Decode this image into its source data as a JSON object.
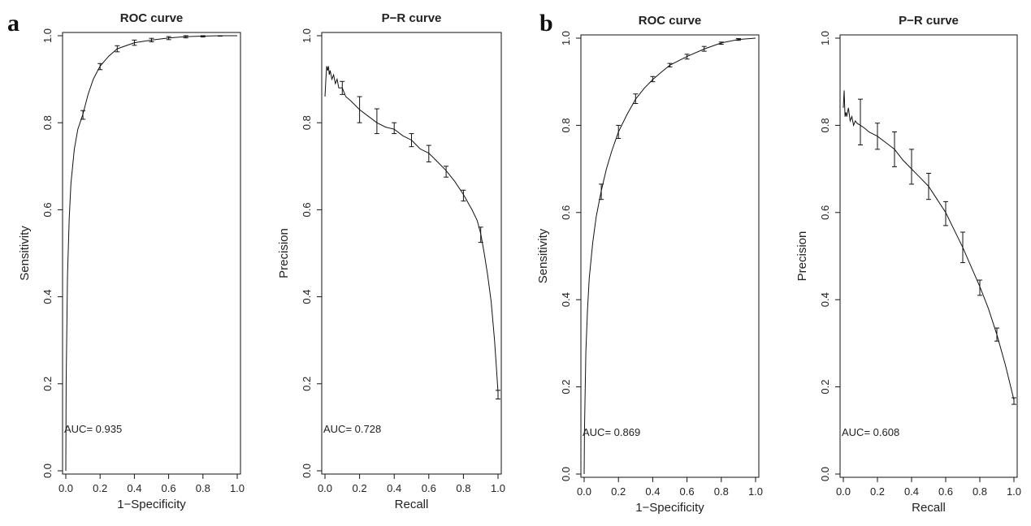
{
  "figure": {
    "panels": [
      {
        "letter": "a"
      },
      {
        "letter": "b"
      }
    ]
  },
  "chart_data": [
    {
      "panel": "a",
      "type": "line",
      "title": "ROC curve",
      "xlabel": "1−Specificity",
      "ylabel": "Sensitivity",
      "xlim": [
        0,
        1
      ],
      "ylim": [
        0,
        1
      ],
      "xticks": [
        "0.0",
        "0.2",
        "0.4",
        "0.6",
        "0.8",
        "1.0"
      ],
      "yticks": [
        "0.0",
        "0.2",
        "0.4",
        "0.6",
        "0.8",
        "1.0"
      ],
      "annotation": "AUC= 0.935",
      "series": [
        {
          "x": [
            0,
            0.002,
            0.01,
            0.02,
            0.03,
            0.05,
            0.07,
            0.1,
            0.13,
            0.16,
            0.2,
            0.25,
            0.3,
            0.4,
            0.5,
            0.6,
            0.7,
            0.8,
            0.9,
            1.0
          ],
          "y": [
            0,
            0.2,
            0.45,
            0.58,
            0.66,
            0.74,
            0.785,
            0.82,
            0.865,
            0.9,
            0.93,
            0.953,
            0.97,
            0.984,
            0.99,
            0.995,
            0.998,
            0.999,
            1.0,
            1.0
          ]
        }
      ],
      "error_bars": [
        {
          "x": 0.1,
          "low": 0.808,
          "high": 0.828
        },
        {
          "x": 0.2,
          "low": 0.922,
          "high": 0.936
        },
        {
          "x": 0.3,
          "low": 0.963,
          "high": 0.977
        },
        {
          "x": 0.4,
          "low": 0.978,
          "high": 0.99
        },
        {
          "x": 0.5,
          "low": 0.986,
          "high": 0.994
        },
        {
          "x": 0.6,
          "low": 0.991,
          "high": 0.998
        },
        {
          "x": 0.7,
          "low": 0.995,
          "high": 1.0
        },
        {
          "x": 0.8,
          "low": 0.997,
          "high": 1.0
        },
        {
          "x": 0.9,
          "low": 0.999,
          "high": 1.0
        }
      ]
    },
    {
      "panel": "a",
      "type": "line",
      "title": "P−R curve",
      "xlabel": "Recall",
      "ylabel": "Precision",
      "xlim": [
        0,
        1
      ],
      "ylim": [
        0,
        1
      ],
      "xticks": [
        "0.0",
        "0.2",
        "0.4",
        "0.6",
        "0.8",
        "1.0"
      ],
      "yticks": [
        "0.0",
        "0.2",
        "0.4",
        "0.6",
        "0.8",
        "1.0"
      ],
      "annotation": "AUC= 0.728",
      "series": [
        {
          "x": [
            0,
            0.005,
            0.01,
            0.015,
            0.02,
            0.025,
            0.03,
            0.04,
            0.05,
            0.06,
            0.07,
            0.08,
            0.1,
            0.12,
            0.15,
            0.2,
            0.25,
            0.3,
            0.35,
            0.4,
            0.45,
            0.5,
            0.55,
            0.6,
            0.65,
            0.7,
            0.75,
            0.8,
            0.85,
            0.88,
            0.9,
            0.92,
            0.94,
            0.96,
            0.98,
            0.99,
            1.0
          ],
          "y": [
            0.86,
            0.9,
            0.93,
            0.92,
            0.93,
            0.91,
            0.92,
            0.9,
            0.91,
            0.89,
            0.9,
            0.88,
            0.88,
            0.86,
            0.85,
            0.83,
            0.815,
            0.8,
            0.79,
            0.785,
            0.77,
            0.76,
            0.74,
            0.73,
            0.71,
            0.69,
            0.665,
            0.635,
            0.6,
            0.575,
            0.545,
            0.5,
            0.45,
            0.39,
            0.3,
            0.24,
            0.18
          ]
        }
      ],
      "error_bars": [
        {
          "x": 0.1,
          "low": 0.865,
          "high": 0.895
        },
        {
          "x": 0.2,
          "low": 0.8,
          "high": 0.86
        },
        {
          "x": 0.3,
          "low": 0.775,
          "high": 0.832
        },
        {
          "x": 0.4,
          "low": 0.775,
          "high": 0.8
        },
        {
          "x": 0.5,
          "low": 0.745,
          "high": 0.775
        },
        {
          "x": 0.6,
          "low": 0.71,
          "high": 0.748
        },
        {
          "x": 0.7,
          "low": 0.675,
          "high": 0.7
        },
        {
          "x": 0.8,
          "low": 0.62,
          "high": 0.645
        },
        {
          "x": 0.9,
          "low": 0.525,
          "high": 0.56
        },
        {
          "x": 1.0,
          "low": 0.165,
          "high": 0.185
        }
      ]
    },
    {
      "panel": "b",
      "type": "line",
      "title": "ROC curve",
      "xlabel": "1−Specificity",
      "ylabel": "Sensitivity",
      "xlim": [
        0,
        1
      ],
      "ylim": [
        0,
        1
      ],
      "xticks": [
        "0.0",
        "0.2",
        "0.4",
        "0.6",
        "0.8",
        "1.0"
      ],
      "yticks": [
        "0.0",
        "0.2",
        "0.4",
        "0.6",
        "0.8",
        "1.0"
      ],
      "annotation": "AUC= 0.869",
      "series": [
        {
          "x": [
            0,
            0.002,
            0.01,
            0.02,
            0.03,
            0.05,
            0.07,
            0.1,
            0.13,
            0.16,
            0.2,
            0.25,
            0.3,
            0.35,
            0.4,
            0.45,
            0.5,
            0.6,
            0.7,
            0.8,
            0.9,
            1.0
          ],
          "y": [
            0,
            0.1,
            0.28,
            0.38,
            0.45,
            0.53,
            0.59,
            0.65,
            0.7,
            0.74,
            0.785,
            0.825,
            0.86,
            0.885,
            0.905,
            0.922,
            0.938,
            0.958,
            0.975,
            0.989,
            0.997,
            1.0
          ]
        }
      ],
      "error_bars": [
        {
          "x": 0.1,
          "low": 0.63,
          "high": 0.665
        },
        {
          "x": 0.2,
          "low": 0.77,
          "high": 0.8
        },
        {
          "x": 0.3,
          "low": 0.85,
          "high": 0.872
        },
        {
          "x": 0.4,
          "low": 0.9,
          "high": 0.912
        },
        {
          "x": 0.5,
          "low": 0.934,
          "high": 0.942
        },
        {
          "x": 0.6,
          "low": 0.952,
          "high": 0.963
        },
        {
          "x": 0.7,
          "low": 0.97,
          "high": 0.981
        },
        {
          "x": 0.8,
          "low": 0.986,
          "high": 0.991
        },
        {
          "x": 0.9,
          "low": 0.995,
          "high": 0.999
        }
      ]
    },
    {
      "panel": "b",
      "type": "line",
      "title": "P−R curve",
      "xlabel": "Recall",
      "ylabel": "Precision",
      "xlim": [
        0,
        1
      ],
      "ylim": [
        0,
        1
      ],
      "xticks": [
        "0.0",
        "0.2",
        "0.4",
        "0.6",
        "0.8",
        "1.0"
      ],
      "yticks": [
        "0.0",
        "0.2",
        "0.4",
        "0.6",
        "0.8",
        "1.0"
      ],
      "annotation": "AUC= 0.608",
      "series": [
        {
          "x": [
            0,
            0.005,
            0.01,
            0.015,
            0.02,
            0.03,
            0.04,
            0.05,
            0.06,
            0.07,
            0.08,
            0.1,
            0.12,
            0.15,
            0.2,
            0.25,
            0.3,
            0.35,
            0.4,
            0.45,
            0.5,
            0.55,
            0.6,
            0.65,
            0.7,
            0.75,
            0.8,
            0.85,
            0.9,
            0.95,
            1.0
          ],
          "y": [
            0.84,
            0.88,
            0.82,
            0.83,
            0.82,
            0.84,
            0.81,
            0.82,
            0.8,
            0.81,
            0.805,
            0.8,
            0.795,
            0.785,
            0.775,
            0.76,
            0.745,
            0.72,
            0.7,
            0.68,
            0.66,
            0.63,
            0.6,
            0.56,
            0.52,
            0.475,
            0.43,
            0.38,
            0.32,
            0.25,
            0.17
          ]
        }
      ],
      "error_bars": [
        {
          "x": 0.1,
          "low": 0.755,
          "high": 0.86
        },
        {
          "x": 0.2,
          "low": 0.745,
          "high": 0.805
        },
        {
          "x": 0.3,
          "low": 0.705,
          "high": 0.785
        },
        {
          "x": 0.4,
          "low": 0.665,
          "high": 0.745
        },
        {
          "x": 0.5,
          "low": 0.63,
          "high": 0.69
        },
        {
          "x": 0.6,
          "low": 0.57,
          "high": 0.625
        },
        {
          "x": 0.7,
          "low": 0.485,
          "high": 0.555
        },
        {
          "x": 0.8,
          "low": 0.41,
          "high": 0.445
        },
        {
          "x": 0.9,
          "low": 0.305,
          "high": 0.335
        },
        {
          "x": 1.0,
          "low": 0.16,
          "high": 0.175
        }
      ]
    }
  ]
}
